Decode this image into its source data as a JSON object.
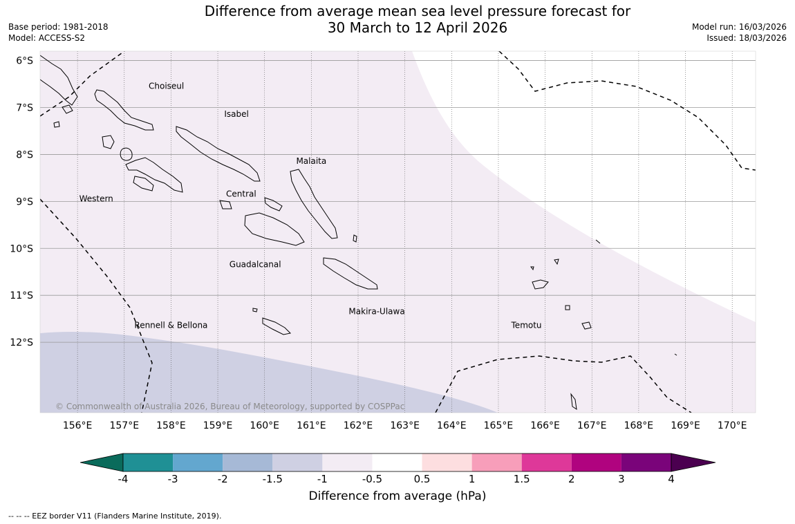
{
  "title_line1": "Difference from average mean sea level pressure forecast for",
  "title_line2": "30 March to 12 April 2026",
  "meta_left": {
    "base_period": "Base period: 1981-2018",
    "model": "Model: ACCESS-S2"
  },
  "meta_right": {
    "model_run": "Model run: 16/03/2026",
    "issued": "Issued: 18/03/2026"
  },
  "map": {
    "lon_labels": [
      "156°E",
      "157°E",
      "158°E",
      "159°E",
      "160°E",
      "161°E",
      "162°E",
      "163°E",
      "164°E",
      "165°E",
      "166°E",
      "167°E",
      "168°E",
      "169°E",
      "170°E"
    ],
    "lat_labels": [
      "6°S",
      "7°S",
      "8°S",
      "9°S",
      "10°S",
      "11°S",
      "12°S"
    ],
    "lon_range": [
      155.2,
      170.5
    ],
    "lat_range": [
      -5.8,
      -13.5
    ],
    "provinces": [
      {
        "name": "Choiseul",
        "lon": 157.9,
        "lat": -6.6
      },
      {
        "name": "Isabel",
        "lon": 159.4,
        "lat": -7.2
      },
      {
        "name": "Malaita",
        "lon": 161.0,
        "lat": -8.2
      },
      {
        "name": "Western",
        "lon": 156.4,
        "lat": -9.0
      },
      {
        "name": "Central",
        "lon": 159.5,
        "lat": -8.9
      },
      {
        "name": "Guadalcanal",
        "lon": 159.8,
        "lat": -10.4
      },
      {
        "name": "Makira-Ulawa",
        "lon": 162.4,
        "lat": -11.4
      },
      {
        "name": "Rennell & Bellona",
        "lon": 158.0,
        "lat": -11.7
      },
      {
        "name": "Temotu",
        "lon": 165.6,
        "lat": -11.7
      }
    ],
    "fill_colors": {
      "minus_1_to_minus_0_5": "#f3ecf4",
      "minus_1_5_to_minus_1": "#cfd0e3"
    },
    "copyright": "© Commonwealth of Australia 2026, Bureau of Meteorology, supported by COSPPac"
  },
  "colorbar": {
    "colors": [
      "#0a6b5b",
      "#1f9095",
      "#63a7cf",
      "#a6b9d6",
      "#cfd0e3",
      "#f3ecf4",
      "#ffffff",
      "#fddee0",
      "#f79eba",
      "#de3899",
      "#b0037f",
      "#7a047a",
      "#4b0050"
    ],
    "ticks": [
      "-4",
      "-3",
      "-2",
      "-1.5",
      "-1",
      "-0.5",
      "0.5",
      "1",
      "1.5",
      "2",
      "3",
      "4"
    ],
    "title": "Difference from average (hPa)"
  },
  "footnote": "-- -- -- EEZ border V11 (Flanders Marine Institute, 2019)."
}
